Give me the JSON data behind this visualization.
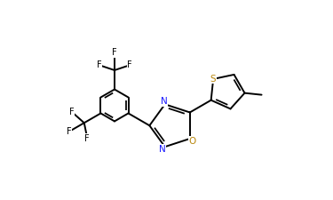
{
  "bg_color": "#ffffff",
  "bond_color": "#000000",
  "lw": 1.4,
  "atom_colors": {
    "N": "#1a1aff",
    "O": "#b8860b",
    "S": "#b8860b",
    "F": "#000000",
    "C": "#000000"
  },
  "xlim": [
    -0.52,
    0.58
  ],
  "ylim": [
    -0.42,
    0.52
  ]
}
